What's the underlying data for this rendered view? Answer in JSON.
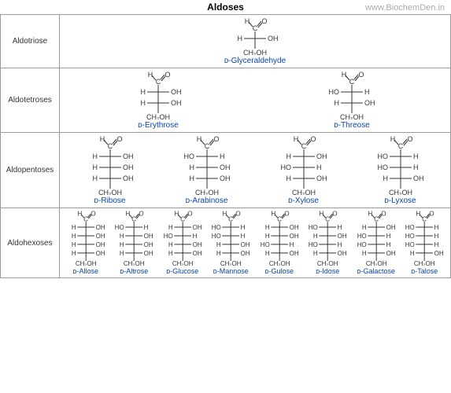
{
  "watermark": "www.BiochemDen.in",
  "title": "Aldoses",
  "rows": {
    "triose": {
      "label": "Aldotriose",
      "compounds": {
        "glyceraldehyde": "ᴅ-Glyceraldehyde"
      }
    },
    "tetrose": {
      "label": "Aldotetroses",
      "compounds": {
        "erythrose": "ᴅ-Erythrose",
        "threose": "ᴅ-Threose"
      }
    },
    "pentose": {
      "label": "Aldopentoses",
      "compounds": {
        "ribose": "ᴅ-Ribose",
        "arabinose": "ᴅ-Arabinose",
        "xylose": "ᴅ-Xylose",
        "lyxose": "ᴅ-Lyxose"
      }
    },
    "hexose": {
      "label": "Aldohexoses",
      "compounds": {
        "allose": "ᴅ-Allose",
        "altrose": "ᴅ-Altrose",
        "glucose": "ᴅ-Glucose",
        "mannose": "ᴅ-Mannose",
        "gulose": "ᴅ-Gulose",
        "idose": "ᴅ-Idose",
        "galactose": "ᴅ-Galactose",
        "talose": "ᴅ-Talose"
      }
    }
  },
  "atoms": {
    "H": "H",
    "O": "O",
    "C": "C",
    "OH": "OH",
    "CH2OH": "CH₂OH"
  },
  "colors": {
    "border": "#999999",
    "text": "#333333",
    "link": "#0645ad",
    "bg": "#ffffff",
    "watermark": "#aaaaaa"
  },
  "stereoPatterns": {
    "glyceraldehyde": [
      "R"
    ],
    "erythrose": [
      "R",
      "R"
    ],
    "threose": [
      "L",
      "R"
    ],
    "ribose": [
      "R",
      "R",
      "R"
    ],
    "arabinose": [
      "L",
      "R",
      "R"
    ],
    "xylose": [
      "R",
      "L",
      "R"
    ],
    "lyxose": [
      "L",
      "L",
      "R"
    ],
    "allose": [
      "R",
      "R",
      "R",
      "R"
    ],
    "altrose": [
      "L",
      "R",
      "R",
      "R"
    ],
    "glucose": [
      "R",
      "L",
      "R",
      "R"
    ],
    "mannose": [
      "L",
      "L",
      "R",
      "R"
    ],
    "gulose": [
      "R",
      "R",
      "L",
      "R"
    ],
    "idose": [
      "L",
      "R",
      "L",
      "R"
    ],
    "galactose": [
      "R",
      "L",
      "L",
      "R"
    ],
    "talose": [
      "L",
      "L",
      "L",
      "R"
    ]
  }
}
